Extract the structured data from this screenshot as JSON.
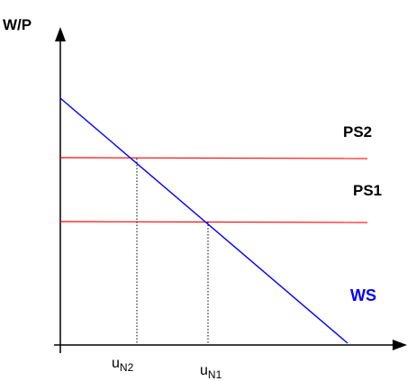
{
  "diagram": {
    "y_axis_label": "W/P",
    "ps2_label": "PS2",
    "ps1_label": "PS1",
    "ws_label": "WS",
    "u_n2": {
      "base": "u",
      "sub": "N2"
    },
    "u_n1": {
      "base": "u",
      "sub": "N1"
    },
    "colors": {
      "axis": "#000000",
      "ps_lines": "#ff0000",
      "ws_line": "#0000ff",
      "ws_label": "#0000ff",
      "dotted_guides": "#000000"
    }
  }
}
